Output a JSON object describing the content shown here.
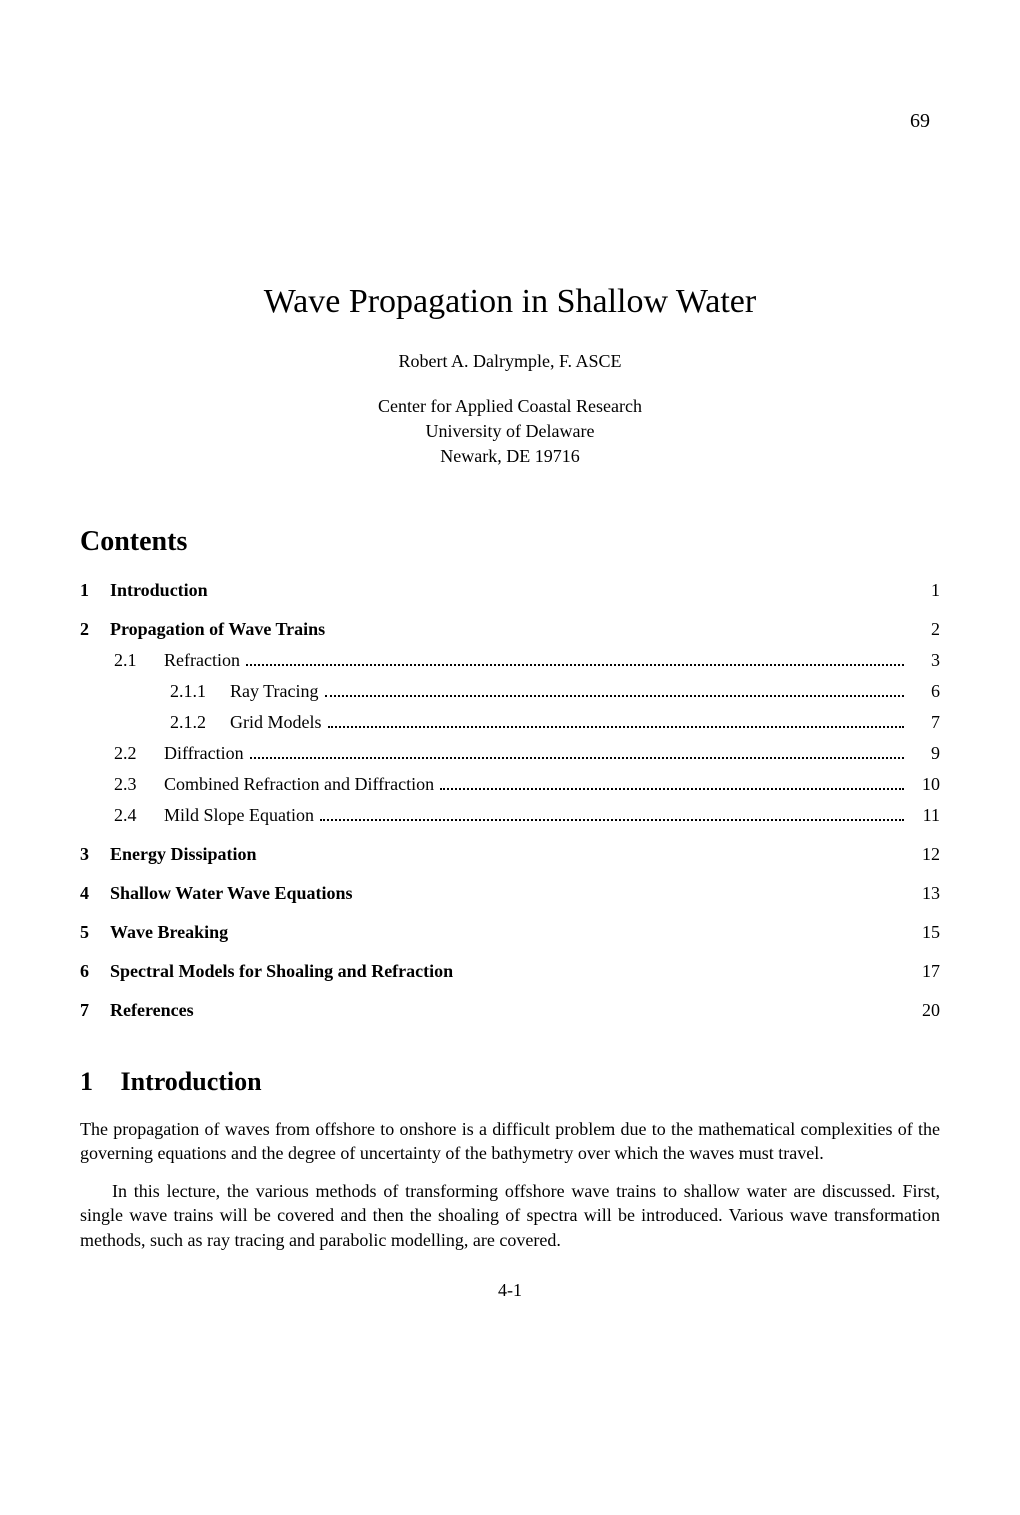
{
  "page_number_top": "69",
  "title": "Wave Propagation in Shallow Water",
  "author": "Robert A. Dalrymple, F. ASCE",
  "affiliation_line1": "Center for Applied Coastal Research",
  "affiliation_line2": "University of Delaware",
  "affiliation_line3": "Newark, DE 19716",
  "contents_heading": "Contents",
  "toc": {
    "s1": {
      "num": "1",
      "label": "Introduction",
      "page": "1"
    },
    "s2": {
      "num": "2",
      "label": "Propagation of Wave Trains",
      "page": "2"
    },
    "s2_1": {
      "num": "2.1",
      "label": "Refraction",
      "page": "3"
    },
    "s2_1_1": {
      "num": "2.1.1",
      "label": "Ray Tracing",
      "page": "6"
    },
    "s2_1_2": {
      "num": "2.1.2",
      "label": "Grid Models",
      "page": "7"
    },
    "s2_2": {
      "num": "2.2",
      "label": "Diffraction",
      "page": "9"
    },
    "s2_3": {
      "num": "2.3",
      "label": "Combined Refraction and Diffraction",
      "page": "10"
    },
    "s2_4": {
      "num": "2.4",
      "label": "Mild Slope Equation",
      "page": "11"
    },
    "s3": {
      "num": "3",
      "label": "Energy Dissipation",
      "page": "12"
    },
    "s4": {
      "num": "4",
      "label": "Shallow Water Wave Equations",
      "page": "13"
    },
    "s5": {
      "num": "5",
      "label": "Wave Breaking",
      "page": "15"
    },
    "s6": {
      "num": "6",
      "label": "Spectral Models for Shoaling and Refraction",
      "page": "17"
    },
    "s7": {
      "num": "7",
      "label": "References",
      "page": "20"
    }
  },
  "intro_heading_num": "1",
  "intro_heading": "Introduction",
  "intro_para1": "The propagation of waves from offshore to onshore is a difficult problem due to the mathematical complexities of the governing equations and the degree of uncertainty of the bathymetry over which the waves must travel.",
  "intro_para2": "In this lecture, the various methods of transforming offshore wave trains to shallow water are discussed. First, single wave trains will be covered and then the shoaling of spectra will be introduced. Various wave transformation methods, such as ray tracing and parabolic modelling, are covered.",
  "footer": "4-1"
}
